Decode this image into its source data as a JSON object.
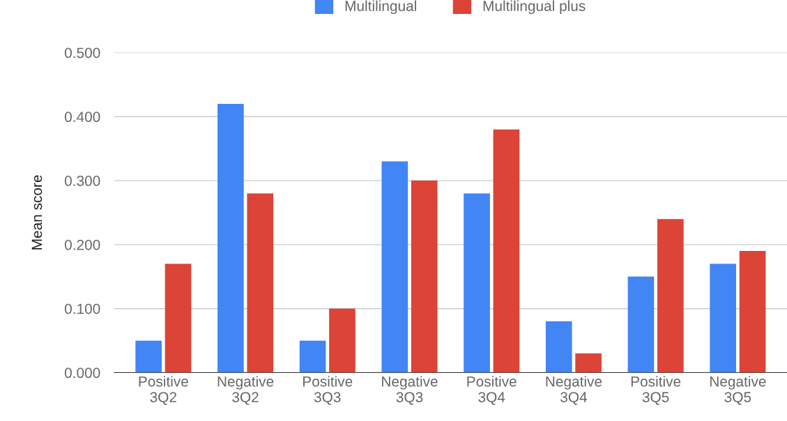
{
  "chart_data": {
    "type": "bar",
    "ylabel": "Mean score",
    "categories": [
      "Positive\n3Q2",
      "Negative\n3Q2",
      "Positive\n3Q3",
      "Negative\n3Q3",
      "Positive\n3Q4",
      "Negative\n3Q4",
      "Positive\n3Q5",
      "Negative\n3Q5"
    ],
    "series": [
      {
        "name": "Multilingual",
        "color": "#4285f4",
        "values": [
          0.05,
          0.42,
          0.05,
          0.33,
          0.28,
          0.08,
          0.15,
          0.17
        ]
      },
      {
        "name": "Multilingual plus",
        "color": "#db4437",
        "values": [
          0.17,
          0.28,
          0.1,
          0.3,
          0.38,
          0.03,
          0.24,
          0.19
        ]
      }
    ],
    "ylim": [
      0,
      0.5
    ],
    "yticks": [
      {
        "value": 0,
        "label": "0.000"
      },
      {
        "value": 0.1,
        "label": "0.100"
      },
      {
        "value": 0.2,
        "label": "0.200"
      },
      {
        "value": 0.3,
        "label": "0.300"
      },
      {
        "value": 0.4,
        "label": "0.400"
      },
      {
        "value": 0.5,
        "label": "0.500"
      }
    ],
    "grid": "y",
    "legend": "top"
  }
}
